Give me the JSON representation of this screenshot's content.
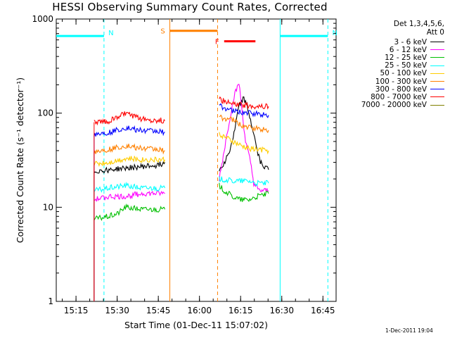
{
  "chart_data": {
    "type": "line",
    "title": "HESSI Observing Summary Count Rates, Corrected",
    "xlabel": "Start Time (01-Dec-11 15:07:02)",
    "ylabel": "Corrected Count Rate (s⁻¹ detector⁻¹)",
    "y_scale": "log",
    "ylim": [
      1,
      1000
    ],
    "xlim_minutes": [
      15.13,
      16.83
    ],
    "x_tick_labels": [
      "15:15",
      "15:30",
      "15:45",
      "16:00",
      "16:15",
      "16:30",
      "16:45"
    ],
    "y_tick_labels": [
      "1",
      "10",
      "100",
      "1000"
    ],
    "legend_header": [
      "Det 1,3,4,5,6,",
      "Att 0"
    ],
    "series": [
      {
        "name": "3 - 6 keV",
        "color": "#000000",
        "x": [
          15.36,
          15.45,
          15.55,
          15.65,
          15.75,
          15.79,
          16.12,
          16.15,
          16.18,
          16.21,
          16.24,
          16.27,
          16.3,
          16.33,
          16.35,
          16.37,
          16.42
        ],
        "y": [
          24,
          25,
          26,
          27,
          28,
          30,
          25,
          30,
          38,
          60,
          120,
          145,
          100,
          60,
          40,
          30,
          25
        ]
      },
      {
        "name": "6 - 12 keV",
        "color": "#ff00ff",
        "x": [
          15.36,
          15.45,
          15.55,
          15.65,
          15.75,
          15.79,
          16.12,
          16.15,
          16.18,
          16.21,
          16.24,
          16.26,
          16.28,
          16.31,
          16.33,
          16.36,
          16.42
        ],
        "y": [
          12,
          13,
          13,
          14,
          14,
          14,
          20,
          40,
          80,
          150,
          210,
          100,
          50,
          30,
          18,
          15,
          15
        ]
      },
      {
        "name": "12 - 25 keV",
        "color": "#00c000",
        "x": [
          15.36,
          15.45,
          15.5,
          15.55,
          15.65,
          15.75,
          15.79,
          16.12,
          16.15,
          16.2,
          16.25,
          16.3,
          16.35,
          16.42
        ],
        "y": [
          7.5,
          8,
          8.5,
          10,
          9.5,
          9.5,
          9.5,
          17,
          15,
          13,
          12,
          12,
          13,
          14
        ]
      },
      {
        "name": "25 - 50 keV",
        "color": "#00ffff",
        "x": [
          15.36,
          15.45,
          15.55,
          15.65,
          15.75,
          15.79,
          16.12,
          16.2,
          16.3,
          16.35,
          16.42
        ],
        "y": [
          15,
          16,
          17,
          16,
          16,
          16,
          20,
          19,
          19,
          18,
          18
        ]
      },
      {
        "name": "50 - 100 keV",
        "color": "#ffcc00",
        "x": [
          15.36,
          15.45,
          15.55,
          15.65,
          15.75,
          15.79,
          16.12,
          16.2,
          16.25,
          16.3,
          16.42
        ],
        "y": [
          29,
          30,
          33,
          32,
          32,
          32,
          60,
          50,
          45,
          42,
          40
        ]
      },
      {
        "name": "100 - 300 keV",
        "color": "#ff8000",
        "x": [
          15.36,
          15.45,
          15.55,
          15.65,
          15.75,
          15.79,
          16.12,
          16.2,
          16.25,
          16.3,
          16.42
        ],
        "y": [
          39,
          41,
          45,
          42,
          41,
          40,
          90,
          85,
          75,
          70,
          66
        ]
      },
      {
        "name": "300 - 800 keV",
        "color": "#0000ff",
        "x": [
          15.36,
          15.45,
          15.55,
          15.65,
          15.75,
          15.79,
          16.12,
          16.2,
          16.3,
          16.42
        ],
        "y": [
          60,
          62,
          70,
          65,
          64,
          63,
          120,
          105,
          100,
          95
        ]
      },
      {
        "name": "800 - 7000 keV",
        "color": "#ff0000",
        "x": [
          15.36,
          15.45,
          15.55,
          15.6,
          15.65,
          15.75,
          15.79,
          16.12,
          16.2,
          16.3,
          16.42
        ],
        "y": [
          80,
          82,
          100,
          92,
          86,
          84,
          83,
          140,
          125,
          120,
          118
        ]
      },
      {
        "name": "7000 - 20000 keV",
        "color": "#808000",
        "x": [],
        "y": []
      }
    ],
    "annotations": [
      {
        "label": "N",
        "color": "#00ffff",
        "type": "night",
        "x_start": 15.13,
        "x_end": 15.42,
        "level": 660
      },
      {
        "label": "N",
        "color": "#00ffff",
        "type": "night",
        "x_start": 16.49,
        "x_end": 16.78,
        "level": 660
      },
      {
        "label": "S",
        "color": "#ff8000",
        "type": "saa",
        "x_start": 15.82,
        "x_end": 16.11,
        "level": 750
      },
      {
        "label": "F",
        "color": "#ff0000",
        "type": "flare",
        "x_start": 16.15,
        "x_end": 16.34,
        "level": 580
      }
    ],
    "footer_stamp": "1-Dec-2011 19:04"
  }
}
